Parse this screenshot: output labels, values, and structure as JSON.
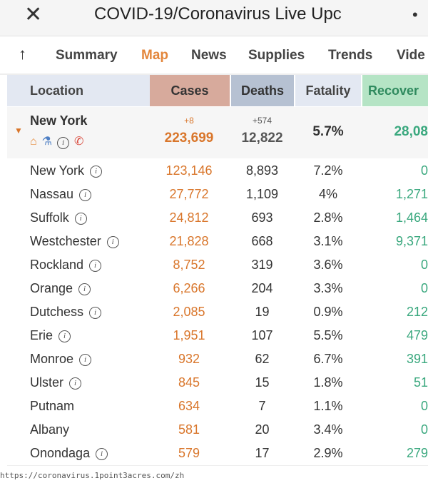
{
  "window": {
    "title": "COVID-19/Coronavirus Live Upc",
    "close_icon": "close-x",
    "more_icon": "more-vertical"
  },
  "tabs": [
    {
      "label": "Summary",
      "active": false
    },
    {
      "label": "Map",
      "active": true
    },
    {
      "label": "News",
      "active": false
    },
    {
      "label": "Supplies",
      "active": false
    },
    {
      "label": "Trends",
      "active": false
    },
    {
      "label": "Vide",
      "active": false
    }
  ],
  "columns": {
    "location": "Location",
    "cases": "Cases",
    "deaths": "Deaths",
    "fatality": "Fatality",
    "recovered": "Recover"
  },
  "colors": {
    "cases_header": "#d7aa9c",
    "deaths_header": "#b6c1d2",
    "fatality_header": "#e3e8f2",
    "recovered_header": "#b5e4c5",
    "location_header": "#e3e8f2",
    "accent": "#e3863b",
    "recovered_text": "#3aa87e"
  },
  "summary": {
    "name": "New York",
    "icons": [
      "home-icon",
      "flask-icon",
      "info-icon",
      "phone-icon"
    ],
    "cases_delta": "+8",
    "cases": "223,699",
    "deaths_delta": "+574",
    "deaths": "12,822",
    "fatality": "5.7%",
    "recovered": "28,08"
  },
  "rows": [
    {
      "name": "New York",
      "info": true,
      "cases": "123,146",
      "deaths": "8,893",
      "fatality": "7.2%",
      "recovered": "0"
    },
    {
      "name": "Nassau",
      "info": true,
      "cases": "27,772",
      "deaths": "1,109",
      "fatality": "4%",
      "recovered": "1,271"
    },
    {
      "name": "Suffolk",
      "info": true,
      "cases": "24,812",
      "deaths": "693",
      "fatality": "2.8%",
      "recovered": "1,464"
    },
    {
      "name": "Westchester",
      "info": true,
      "cases": "21,828",
      "deaths": "668",
      "fatality": "3.1%",
      "recovered": "9,371"
    },
    {
      "name": "Rockland",
      "info": true,
      "cases": "8,752",
      "deaths": "319",
      "fatality": "3.6%",
      "recovered": "0"
    },
    {
      "name": "Orange",
      "info": true,
      "cases": "6,266",
      "deaths": "204",
      "fatality": "3.3%",
      "recovered": "0"
    },
    {
      "name": "Dutchess",
      "info": true,
      "cases": "2,085",
      "deaths": "19",
      "fatality": "0.9%",
      "recovered": "212"
    },
    {
      "name": "Erie",
      "info": true,
      "cases": "1,951",
      "deaths": "107",
      "fatality": "5.5%",
      "recovered": "479"
    },
    {
      "name": "Monroe",
      "info": true,
      "cases": "932",
      "deaths": "62",
      "fatality": "6.7%",
      "recovered": "391"
    },
    {
      "name": "Ulster",
      "info": true,
      "cases": "845",
      "deaths": "15",
      "fatality": "1.8%",
      "recovered": "51"
    },
    {
      "name": "Putnam",
      "info": false,
      "cases": "634",
      "deaths": "7",
      "fatality": "1.1%",
      "recovered": "0"
    },
    {
      "name": "Albany",
      "info": false,
      "cases": "581",
      "deaths": "20",
      "fatality": "3.4%",
      "recovered": "0"
    },
    {
      "name": "Onondaga",
      "info": true,
      "cases": "579",
      "deaths": "17",
      "fatality": "2.9%",
      "recovered": "279"
    }
  ],
  "footer_url": "https://coronavirus.1point3acres.com/zh"
}
